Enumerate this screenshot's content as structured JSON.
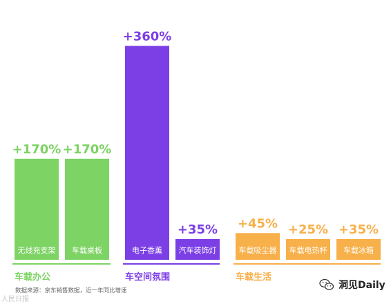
{
  "chart_data": {
    "type": "bar",
    "ylim": [
      0,
      400
    ],
    "groups": [
      {
        "name": "车载办公",
        "color": "#7dd364",
        "items": [
          {
            "label": "无线充支架",
            "value": 170,
            "display": "+170%"
          },
          {
            "label": "车载桌板",
            "value": 170,
            "display": "+170%"
          }
        ]
      },
      {
        "name": "车空间氛围",
        "color": "#7c3fe6",
        "items": [
          {
            "label": "电子香薰",
            "value": 360,
            "display": "+360%"
          },
          {
            "label": "汽车装饰灯",
            "value": 35,
            "display": "+35%"
          }
        ]
      },
      {
        "name": "车载生活",
        "color": "#f7b04a",
        "items": [
          {
            "label": "车载吸尘器",
            "value": 45,
            "display": "+45%"
          },
          {
            "label": "车载电热杯",
            "value": 25,
            "display": "+25%"
          },
          {
            "label": "车载冰箱",
            "value": 35,
            "display": "+35%"
          }
        ]
      }
    ]
  },
  "source_note": "数据来源：京东销售数据，近一年同比增速",
  "watermark_left": "人民日报",
  "brand": {
    "name": "洞见Daily",
    "icon": "wechat-icon"
  }
}
